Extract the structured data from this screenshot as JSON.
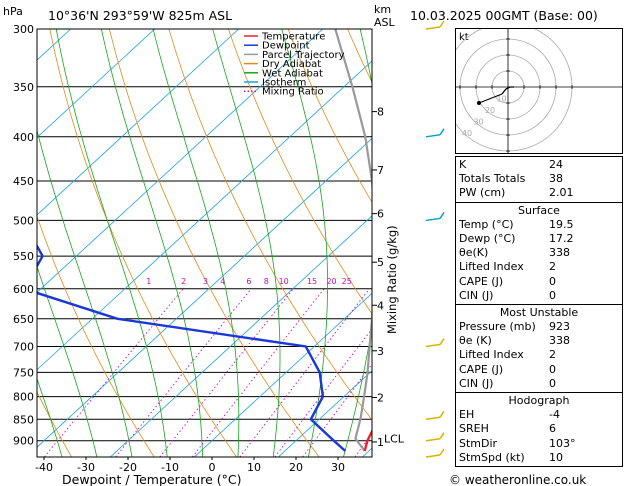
{
  "header": {
    "left_unit": "hPa",
    "location": "10°36'N  293°59'W  825m  ASL",
    "km_label": "km",
    "asl_label": "ASL",
    "datetime": "10.03.2025  00GMT  (Base: 00)"
  },
  "legend": {
    "items": [
      {
        "label": "Temperature",
        "color": "#e8232b",
        "style": "solid"
      },
      {
        "label": "Dewpoint",
        "color": "#1a38d8",
        "style": "solid"
      },
      {
        "label": "Parcel Trajectory",
        "color": "#999999",
        "style": "solid"
      },
      {
        "label": "Dry Adiabat",
        "color": "#e08b1c",
        "style": "solid"
      },
      {
        "label": "Wet Adiabat",
        "color": "#16a51e",
        "style": "solid"
      },
      {
        "label": "Isotherm",
        "color": "#19a3e0",
        "style": "solid"
      },
      {
        "label": "Mixing Ratio",
        "color": "#c010b8",
        "style": "dotted"
      }
    ]
  },
  "chart_data": {
    "type": "skew-t",
    "xlabel": "Dewpoint / Temperature (°C)",
    "ylabel_right": "Mixing Ratio (g/kg)",
    "x_ticks": [
      -40,
      -30,
      -20,
      -10,
      0,
      10,
      20,
      30
    ],
    "pressure_levels": [
      300,
      350,
      400,
      450,
      500,
      550,
      600,
      650,
      700,
      750,
      800,
      850,
      900
    ],
    "km_ticks": [
      {
        "label": "8",
        "p": 374
      },
      {
        "label": "7",
        "p": 437
      },
      {
        "label": "6",
        "p": 491
      },
      {
        "label": "5",
        "p": 559
      },
      {
        "label": "4",
        "p": 627
      },
      {
        "label": "3",
        "p": 708
      },
      {
        "label": "2",
        "p": 802
      },
      {
        "label": "1",
        "p": 903
      }
    ],
    "lcl_label": "LCL",
    "lcl_p": 895,
    "mixing_ratio_labels": [
      {
        "label": "1",
        "t": -9
      },
      {
        "label": "2",
        "t": -1
      },
      {
        "label": "3",
        "t": 4
      },
      {
        "label": "4",
        "t": 8
      },
      {
        "label": "6",
        "t": 14
      },
      {
        "label": "8",
        "t": 18
      },
      {
        "label": "10",
        "t": 22
      },
      {
        "label": "15",
        "t": 28.5
      },
      {
        "label": "20",
        "t": 33
      },
      {
        "label": "25",
        "t": 36.5
      }
    ],
    "temperature": [
      {
        "p": 925,
        "t": 19.5
      },
      {
        "p": 900,
        "t": 18.5
      },
      {
        "p": 850,
        "t": 17.0
      },
      {
        "p": 800,
        "t": 14.5
      },
      {
        "p": 750,
        "t": 11.5
      },
      {
        "p": 700,
        "t": 9.5
      },
      {
        "p": 650,
        "t": 7.0
      },
      {
        "p": 600,
        "t": 3.5
      },
      {
        "p": 550,
        "t": -1.0
      },
      {
        "p": 500,
        "t": -6.5
      },
      {
        "p": 450,
        "t": -11.5
      },
      {
        "p": 400,
        "t": -17.5
      },
      {
        "p": 350,
        "t": -25.0
      },
      {
        "p": 300,
        "t": -34.0
      }
    ],
    "dewpoint": [
      {
        "p": 925,
        "t": 17.2
      },
      {
        "p": 900,
        "t": 14.5
      },
      {
        "p": 850,
        "t": 9.0
      },
      {
        "p": 800,
        "t": 7.5
      },
      {
        "p": 750,
        "t": 4.0
      },
      {
        "p": 700,
        "t": -1.0
      },
      {
        "p": 650,
        "t": -27.0
      },
      {
        "p": 600,
        "t": -42.0
      },
      {
        "p": 550,
        "t": -44.0
      },
      {
        "p": 500,
        "t": -51.0
      },
      {
        "p": 450,
        "t": -66.0
      },
      {
        "p": 400,
        "t": -77.0
      },
      {
        "p": 350,
        "t": -67.0
      },
      {
        "p": 300,
        "t": -75.0
      }
    ],
    "parcel": [
      {
        "p": 925,
        "t": 19.5
      },
      {
        "p": 895,
        "t": 16.8
      },
      {
        "p": 850,
        "t": 14.9
      },
      {
        "p": 800,
        "t": 12.4
      },
      {
        "p": 750,
        "t": 9.7
      },
      {
        "p": 700,
        "t": 6.6
      },
      {
        "p": 650,
        "t": 3.3
      },
      {
        "p": 600,
        "t": -0.3
      },
      {
        "p": 550,
        "t": -4.3
      },
      {
        "p": 500,
        "t": -9.0
      },
      {
        "p": 450,
        "t": -14.5
      },
      {
        "p": 400,
        "t": -21.0
      },
      {
        "p": 350,
        "t": -29.0
      },
      {
        "p": 300,
        "t": -38.5
      }
    ],
    "wind_barbs": [
      {
        "p": 300,
        "color": "#d8b400"
      },
      {
        "p": 400,
        "color": "#00a5c8"
      },
      {
        "p": 500,
        "color": "#00a5c8"
      },
      {
        "p": 700,
        "color": "#d8b400"
      },
      {
        "p": 850,
        "color": "#d8b400"
      },
      {
        "p": 900,
        "color": "#d8b400"
      },
      {
        "p": 925,
        "color": "#d8b400"
      }
    ]
  },
  "hodograph": {
    "unit": "kt",
    "ring_labels": [
      "10",
      "20",
      "30",
      "40"
    ]
  },
  "stats": {
    "indices": [
      {
        "label": "K",
        "value": "24"
      },
      {
        "label": "Totals Totals",
        "value": "38"
      },
      {
        "label": "PW (cm)",
        "value": "2.01"
      }
    ],
    "surface_title": "Surface",
    "surface": [
      {
        "label": "Temp (°C)",
        "value": "19.5"
      },
      {
        "label": "Dewp (°C)",
        "value": "17.2"
      },
      {
        "label": "θe(K)",
        "value": "338"
      },
      {
        "label": "Lifted Index",
        "value": "2"
      },
      {
        "label": "CAPE (J)",
        "value": "0"
      },
      {
        "label": "CIN (J)",
        "value": "0"
      }
    ],
    "mu_title": "Most Unstable",
    "most_unstable": [
      {
        "label": "Pressure (mb)",
        "value": "923"
      },
      {
        "label": "θe (K)",
        "value": "338"
      },
      {
        "label": "Lifted Index",
        "value": "2"
      },
      {
        "label": "CAPE (J)",
        "value": "0"
      },
      {
        "label": "CIN (J)",
        "value": "0"
      }
    ],
    "hodo_title": "Hodograph",
    "hodograph": [
      {
        "label": "EH",
        "value": "-4"
      },
      {
        "label": "SREH",
        "value": "6"
      },
      {
        "label": "StmDir",
        "value": "103°"
      },
      {
        "label": "StmSpd (kt)",
        "value": "10"
      }
    ]
  },
  "footer": {
    "copyright": "© weatheronline.co.uk"
  }
}
